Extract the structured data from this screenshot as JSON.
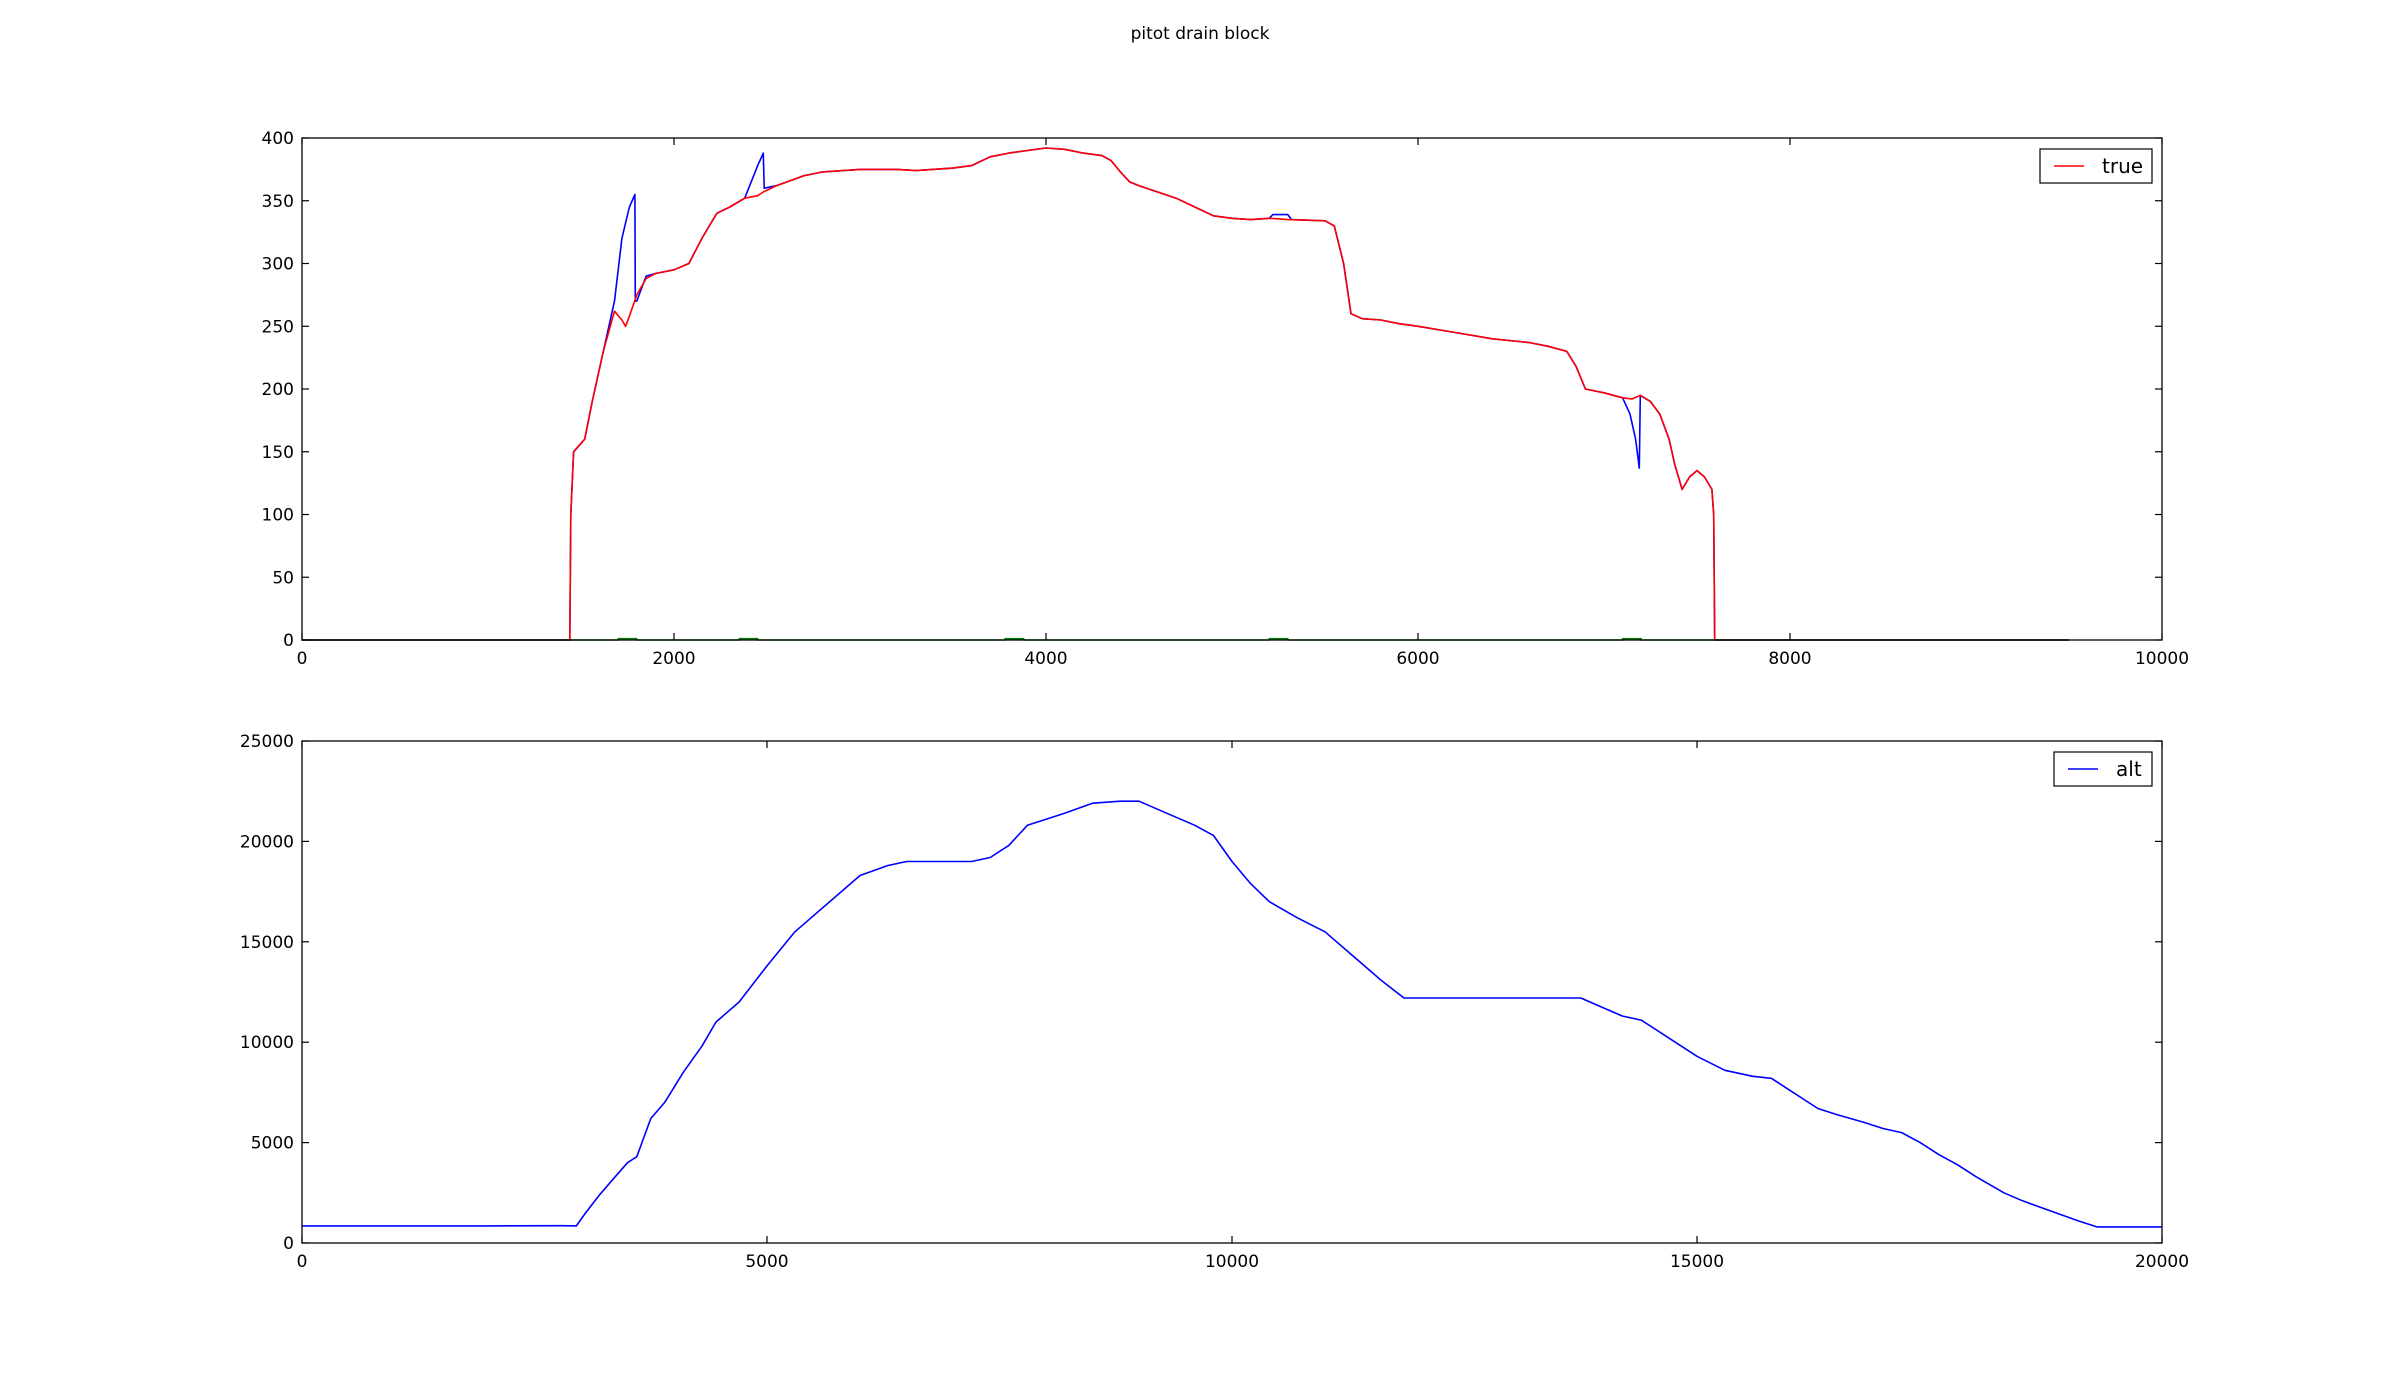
{
  "figure": {
    "title": "pitot drain block"
  },
  "chart_data": [
    {
      "type": "line",
      "title": "",
      "xlabel": "",
      "ylabel": "",
      "xlim": [
        0,
        10000
      ],
      "ylim": [
        0,
        400
      ],
      "x_ticks": [
        0,
        2000,
        4000,
        6000,
        8000,
        10000
      ],
      "y_ticks": [
        0,
        50,
        100,
        150,
        200,
        250,
        300,
        350,
        400
      ],
      "legend": {
        "placement": "top-right",
        "entries": [
          "true"
        ]
      },
      "grid": false,
      "series": [
        {
          "name": "",
          "color": "#0000ff",
          "points": [
            [
              0,
              0
            ],
            [
              1440,
              0
            ],
            [
              1445,
              100
            ],
            [
              1460,
              150
            ],
            [
              1520,
              160
            ],
            [
              1560,
              190
            ],
            [
              1620,
              230
            ],
            [
              1680,
              270
            ],
            [
              1720,
              320
            ],
            [
              1760,
              345
            ],
            [
              1790,
              355
            ],
            [
              1792,
              270
            ],
            [
              1800,
              270
            ],
            [
              1850,
              290
            ],
            [
              1900,
              292
            ],
            [
              2000,
              295
            ],
            [
              2080,
              300
            ],
            [
              2150,
              320
            ],
            [
              2230,
              340
            ],
            [
              2300,
              345
            ],
            [
              2380,
              352
            ],
            [
              2450,
              378
            ],
            [
              2480,
              388
            ],
            [
              2485,
              360
            ],
            [
              2550,
              362
            ],
            [
              2700,
              370
            ],
            [
              2800,
              373
            ],
            [
              3000,
              375
            ],
            [
              3200,
              375
            ],
            [
              3300,
              374
            ],
            [
              3500,
              376
            ],
            [
              3600,
              378
            ],
            [
              3700,
              385
            ],
            [
              3800,
              388
            ],
            [
              4000,
              392
            ],
            [
              4100,
              391
            ],
            [
              4200,
              388
            ],
            [
              4300,
              386
            ],
            [
              4350,
              382
            ],
            [
              4400,
              373
            ],
            [
              4450,
              365
            ],
            [
              4500,
              362
            ],
            [
              4600,
              357
            ],
            [
              4700,
              352
            ],
            [
              4800,
              345
            ],
            [
              4900,
              338
            ],
            [
              5000,
              336
            ],
            [
              5100,
              335
            ],
            [
              5200,
              336
            ],
            [
              5220,
              339
            ],
            [
              5300,
              339
            ],
            [
              5320,
              335
            ],
            [
              5500,
              334
            ],
            [
              5550,
              330
            ],
            [
              5600,
              300
            ],
            [
              5640,
              260
            ],
            [
              5700,
              256
            ],
            [
              5800,
              255
            ],
            [
              5900,
              252
            ],
            [
              6000,
              250
            ],
            [
              6200,
              245
            ],
            [
              6400,
              240
            ],
            [
              6600,
              237
            ],
            [
              6700,
              234
            ],
            [
              6800,
              230
            ],
            [
              6850,
              218
            ],
            [
              6900,
              200
            ],
            [
              7000,
              197
            ],
            [
              7050,
              195
            ],
            [
              7100,
              193
            ],
            [
              7140,
              180
            ],
            [
              7170,
              160
            ],
            [
              7190,
              137
            ],
            [
              7195,
              195
            ],
            [
              7250,
              190
            ],
            [
              7300,
              180
            ],
            [
              7350,
              160
            ],
            [
              7380,
              140
            ],
            [
              7420,
              120
            ],
            [
              7460,
              130
            ],
            [
              7500,
              135
            ],
            [
              7540,
              130
            ],
            [
              7580,
              120
            ],
            [
              7590,
              100
            ],
            [
              7595,
              0
            ],
            [
              9500,
              0
            ]
          ]
        },
        {
          "name": "true",
          "color": "#ff0000",
          "points": [
            [
              0,
              0
            ],
            [
              1440,
              0
            ],
            [
              1445,
              100
            ],
            [
              1460,
              150
            ],
            [
              1520,
              160
            ],
            [
              1560,
              190
            ],
            [
              1620,
              230
            ],
            [
              1680,
              262
            ],
            [
              1720,
              255
            ],
            [
              1740,
              250
            ],
            [
              1760,
              258
            ],
            [
              1800,
              275
            ],
            [
              1850,
              288
            ],
            [
              1900,
              292
            ],
            [
              2000,
              295
            ],
            [
              2080,
              300
            ],
            [
              2150,
              320
            ],
            [
              2230,
              340
            ],
            [
              2300,
              345
            ],
            [
              2380,
              352
            ],
            [
              2450,
              354
            ],
            [
              2480,
              357
            ],
            [
              2550,
              362
            ],
            [
              2700,
              370
            ],
            [
              2800,
              373
            ],
            [
              3000,
              375
            ],
            [
              3200,
              375
            ],
            [
              3300,
              374
            ],
            [
              3500,
              376
            ],
            [
              3600,
              378
            ],
            [
              3700,
              385
            ],
            [
              3800,
              388
            ],
            [
              4000,
              392
            ],
            [
              4100,
              391
            ],
            [
              4200,
              388
            ],
            [
              4300,
              386
            ],
            [
              4350,
              382
            ],
            [
              4400,
              373
            ],
            [
              4450,
              365
            ],
            [
              4500,
              362
            ],
            [
              4600,
              357
            ],
            [
              4700,
              352
            ],
            [
              4800,
              345
            ],
            [
              4900,
              338
            ],
            [
              5000,
              336
            ],
            [
              5100,
              335
            ],
            [
              5200,
              336
            ],
            [
              5300,
              335
            ],
            [
              5500,
              334
            ],
            [
              5550,
              330
            ],
            [
              5600,
              300
            ],
            [
              5640,
              260
            ],
            [
              5700,
              256
            ],
            [
              5800,
              255
            ],
            [
              5900,
              252
            ],
            [
              6000,
              250
            ],
            [
              6200,
              245
            ],
            [
              6400,
              240
            ],
            [
              6600,
              237
            ],
            [
              6700,
              234
            ],
            [
              6800,
              230
            ],
            [
              6850,
              218
            ],
            [
              6900,
              200
            ],
            [
              7000,
              197
            ],
            [
              7050,
              195
            ],
            [
              7100,
              193
            ],
            [
              7150,
              192
            ],
            [
              7195,
              195
            ],
            [
              7250,
              190
            ],
            [
              7300,
              180
            ],
            [
              7350,
              160
            ],
            [
              7380,
              140
            ],
            [
              7420,
              120
            ],
            [
              7460,
              130
            ],
            [
              7500,
              135
            ],
            [
              7540,
              130
            ],
            [
              7580,
              120
            ],
            [
              7590,
              100
            ],
            [
              7595,
              0
            ],
            [
              9500,
              0
            ]
          ]
        },
        {
          "name": "",
          "color": "#008000",
          "points": [
            [
              0,
              0
            ],
            [
              1700,
              0
            ],
            [
              1700,
              1
            ],
            [
              1800,
              1
            ],
            [
              1800,
              0
            ],
            [
              2350,
              0
            ],
            [
              2350,
              1
            ],
            [
              2450,
              1
            ],
            [
              2450,
              0
            ],
            [
              3780,
              0
            ],
            [
              3780,
              1
            ],
            [
              3880,
              1
            ],
            [
              3880,
              0
            ],
            [
              5200,
              0
            ],
            [
              5200,
              1
            ],
            [
              5300,
              1
            ],
            [
              5300,
              0
            ],
            [
              7100,
              0
            ],
            [
              7100,
              1
            ],
            [
              7200,
              1
            ],
            [
              7200,
              0
            ],
            [
              9500,
              0
            ]
          ]
        }
      ]
    },
    {
      "type": "line",
      "title": "",
      "xlabel": "",
      "ylabel": "",
      "xlim": [
        0,
        20000
      ],
      "ylim": [
        0,
        25000
      ],
      "x_ticks": [
        0,
        5000,
        10000,
        15000,
        20000
      ],
      "y_ticks": [
        0,
        5000,
        10000,
        15000,
        20000,
        25000
      ],
      "legend": {
        "placement": "top-right",
        "entries": [
          "alt"
        ]
      },
      "grid": false,
      "series": [
        {
          "name": "alt",
          "color": "#0000ff",
          "points": [
            [
              0,
              850
            ],
            [
              1000,
              850
            ],
            [
              2000,
              850
            ],
            [
              2800,
              860
            ],
            [
              2950,
              850
            ],
            [
              3050,
              1500
            ],
            [
              3200,
              2400
            ],
            [
              3350,
              3200
            ],
            [
              3500,
              4000
            ],
            [
              3600,
              4300
            ],
            [
              3750,
              6200
            ],
            [
              3900,
              7000
            ],
            [
              4100,
              8500
            ],
            [
              4300,
              9800
            ],
            [
              4450,
              11000
            ],
            [
              4700,
              12000
            ],
            [
              5000,
              13800
            ],
            [
              5300,
              15500
            ],
            [
              5500,
              16300
            ],
            [
              5800,
              17500
            ],
            [
              6000,
              18300
            ],
            [
              6300,
              18800
            ],
            [
              6500,
              19000
            ],
            [
              6800,
              19000
            ],
            [
              7200,
              19000
            ],
            [
              7400,
              19200
            ],
            [
              7600,
              19800
            ],
            [
              7800,
              20800
            ],
            [
              8200,
              21400
            ],
            [
              8500,
              21900
            ],
            [
              8800,
              22000
            ],
            [
              9000,
              22000
            ],
            [
              9300,
              21400
            ],
            [
              9600,
              20800
            ],
            [
              9800,
              20300
            ],
            [
              10000,
              19000
            ],
            [
              10200,
              17900
            ],
            [
              10400,
              17000
            ],
            [
              10700,
              16200
            ],
            [
              11000,
              15500
            ],
            [
              11300,
              14300
            ],
            [
              11600,
              13100
            ],
            [
              11850,
              12200
            ],
            [
              12100,
              12200
            ],
            [
              12400,
              12200
            ],
            [
              13000,
              12200
            ],
            [
              13500,
              12200
            ],
            [
              13750,
              12200
            ],
            [
              14000,
              11700
            ],
            [
              14200,
              11300
            ],
            [
              14400,
              11100
            ],
            [
              14700,
              10200
            ],
            [
              15000,
              9300
            ],
            [
              15300,
              8600
            ],
            [
              15600,
              8300
            ],
            [
              15800,
              8200
            ],
            [
              16000,
              7600
            ],
            [
              16300,
              6700
            ],
            [
              16500,
              6400
            ],
            [
              16800,
              6000
            ],
            [
              17000,
              5700
            ],
            [
              17200,
              5500
            ],
            [
              17400,
              5000
            ],
            [
              17600,
              4400
            ],
            [
              17800,
              3900
            ],
            [
              18000,
              3300
            ],
            [
              18300,
              2500
            ],
            [
              18500,
              2100
            ],
            [
              18800,
              1600
            ],
            [
              19100,
              1100
            ],
            [
              19300,
              800
            ],
            [
              20000,
              800
            ]
          ]
        }
      ]
    }
  ]
}
